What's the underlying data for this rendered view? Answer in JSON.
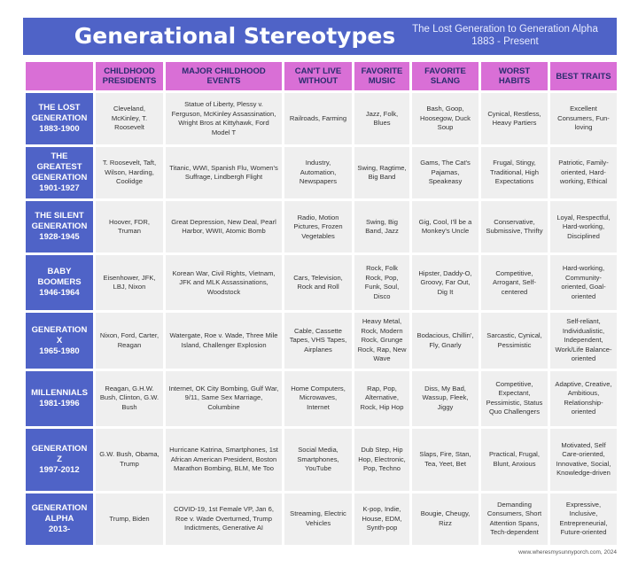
{
  "title": "Generational Stereotypes",
  "subtitle": [
    "The Lost Generation to Generation Alpha",
    "1883 - Present"
  ],
  "columns": [
    "",
    "CHILDHOOD PRESIDENTS",
    "MAJOR CHILDHOOD EVENTS",
    "CAN'T LIVE WITHOUT",
    "FAVORITE MUSIC",
    "FAVORITE SLANG",
    "WORST HABITS",
    "BEST TRAITS"
  ],
  "rows": [
    {
      "generation": [
        "THE LOST",
        "GENERATION",
        "1883-1900"
      ],
      "cells": [
        "Cleveland, McKinley, T. Roosevelt",
        "Statue of Liberty, Plessy v. Ferguson, McKinley Assassination, Wright Bros at Kittyhawk, Ford Model T",
        "Railroads, Farming",
        "Jazz, Folk, Blues",
        "Bash, Goop, Hoosegow, Duck Soup",
        "Cynical, Restless, Heavy Partiers",
        "Excellent Consumers, Fun-loving"
      ]
    },
    {
      "generation": [
        "THE",
        "GREATEST",
        "GENERATION",
        "1901-1927"
      ],
      "cells": [
        "T. Roosevelt, Taft, Wilson, Harding, Coolidge",
        "Titanic, WWI, Spanish Flu, Women's Suffrage, Lindbergh Flight",
        "Industry, Automation, Newspapers",
        "Swing, Ragtime, Big Band",
        "Gams, The Cat's Pajamas, Speakeasy",
        "Frugal, Stingy, Traditional, High Expectations",
        "Patriotic, Family-oriented, Hard-working, Ethical"
      ]
    },
    {
      "generation": [
        "THE SILENT",
        "GENERATION",
        "1928-1945"
      ],
      "cells": [
        "Hoover, FDR, Truman",
        "Great Depression, New Deal, Pearl Harbor, WWII, Atomic Bomb",
        "Radio, Motion Pictures, Frozen Vegetables",
        "Swing, Big Band, Jazz",
        "Gig, Cool, I'll be a Monkey's Uncle",
        "Conservative, Submissive, Thrifty",
        "Loyal, Respectful, Hard-working, Disciplined"
      ]
    },
    {
      "generation": [
        "BABY",
        "BOOMERS",
        "1946-1964"
      ],
      "cells": [
        "Eisenhower, JFK, LBJ, Nixon",
        "Korean War, Civil Rights, Vietnam, JFK and MLK Assassinations, Woodstock",
        "Cars, Television, Rock and Roll",
        "Rock, Folk Rock, Pop, Funk, Soul, Disco",
        "Hipster, Daddy-O, Groovy, Far Out, Dig It",
        "Competitive, Arrogant, Self-centered",
        "Hard-working, Community-oriented, Goal-oriented"
      ]
    },
    {
      "generation": [
        "GENERATION X",
        "1965-1980"
      ],
      "cells": [
        "Nixon, Ford, Carter, Reagan",
        "Watergate, Roe v. Wade, Three Mile Island, Challenger Explosion",
        "Cable, Cassette Tapes, VHS Tapes, Airplanes",
        "Heavy Metal, Rock, Modern Rock, Grunge Rock, Rap, New Wave",
        "Bodacious, Chillin', Fly, Gnarly",
        "Sarcastic, Cynical, Pessimistic",
        "Self-reliant, Individualistic, Independent, Work/Life Balance-oriented"
      ]
    },
    {
      "generation": [
        "MILLENNIALS",
        "1981-1996"
      ],
      "cells": [
        "Reagan, G.H.W. Bush, Clinton, G.W. Bush",
        "Internet, OK City Bombing, Gulf War, 9/11, Same Sex Marriage, Columbine",
        "Home Computers, Microwaves, Internet",
        "Rap, Pop, Alternative, Rock, Hip Hop",
        "Diss, My Bad, Wassup, Fleek, Jiggy",
        "Competitive, Expectant, Pessimistic, Status Quo Challengers",
        "Adaptive, Creative, Ambitious, Relationship-oriented"
      ]
    },
    {
      "generation": [
        "GENERATION Z",
        "1997-2012"
      ],
      "cells": [
        "G.W. Bush, Obama, Trump",
        "Hurricane Katrina, Smartphones, 1st African American President, Boston Marathon Bombing, BLM, Me Too",
        "Social Media, Smartphones, YouTube",
        "Dub Step, Hip Hop, Electronic, Pop, Techno",
        "Slaps, Fire, Stan, Tea, Yeet, Bet",
        "Practical, Frugal, Blunt, Anxious",
        "Motivated, Self Care-oriented, Innovative, Social, Knowledge-driven"
      ]
    },
    {
      "generation": [
        "GENERATION",
        "ALPHA",
        "2013-"
      ],
      "cells": [
        "Trump, Biden",
        "COVID-19, 1st Female VP, Jan 6, Roe v. Wade Overturned, Trump Indictments, Generative AI",
        "Streaming, Electric Vehicles",
        "K-pop, Indie, House, EDM, Synth-pop",
        "Bougie, Cheugy, Rizz",
        "Demanding Consumers, Short Attention Spans, Tech-dependent",
        "Expressive, Inclusive, Entrepreneurial, Future-oriented"
      ]
    }
  ],
  "footer": "www.wheresmysunnyporch.com, 2024",
  "colors": {
    "banner": "#4f63c7",
    "header": "#d96fd6",
    "cell": "#efefef"
  }
}
